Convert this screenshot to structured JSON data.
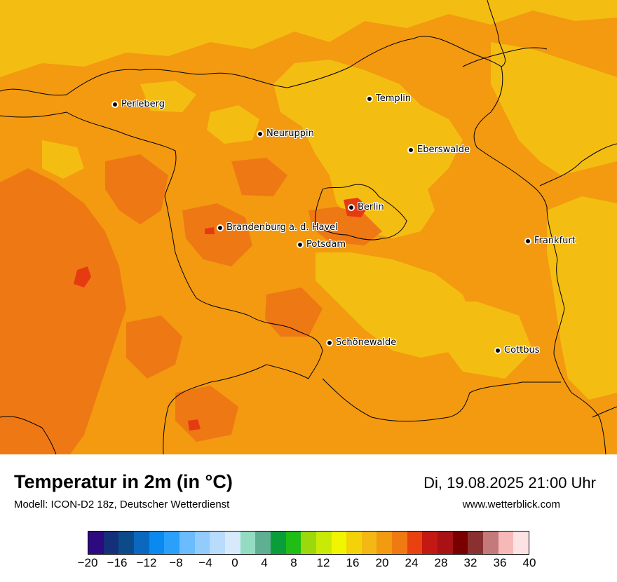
{
  "map": {
    "cities": [
      {
        "id": "perleberg",
        "name": "Perleberg"
      },
      {
        "id": "templin",
        "name": "Templin"
      },
      {
        "id": "neuruppin",
        "name": "Neuruppin"
      },
      {
        "id": "eberswalde",
        "name": "Eberswalde"
      },
      {
        "id": "berlin",
        "name": "Berlin"
      },
      {
        "id": "brandenburg",
        "name": "Brandenburg a. d. Havel"
      },
      {
        "id": "potsdam",
        "name": "Potsdam"
      },
      {
        "id": "frankfurt",
        "name": "Frankfurt"
      },
      {
        "id": "schoenewalde",
        "name": "Schönewalde"
      },
      {
        "id": "cottbus",
        "name": "Cottbus"
      }
    ],
    "colors": {
      "base": "#f39a10",
      "warmer": "#ee7814",
      "cooler": "#f4bd12",
      "hot": "#e63b12"
    }
  },
  "footer": {
    "title": "Temperatur in 2m (in °C)",
    "model": "Modell: ICON-D2 18z, Deutscher Wetterdienst",
    "datetime": "Di, 19.08.2025 21:00 Uhr",
    "website": "www.wetterblick.com"
  },
  "legend": {
    "colors": [
      "#2d0a7f",
      "#14307a",
      "#0c4b8a",
      "#0a68c0",
      "#0a8af0",
      "#2aa0fa",
      "#6bbcfc",
      "#92ccfc",
      "#b8dcfc",
      "#d6eafc",
      "#93dcc1",
      "#5fb092",
      "#0a9e3a",
      "#1fbd16",
      "#9bd80c",
      "#c9ea06",
      "#f2f500",
      "#f4d20a",
      "#f4b814",
      "#f29a10",
      "#ef7a12",
      "#e94210",
      "#c41812",
      "#a81214",
      "#7a0000",
      "#8a3030",
      "#c47a7a",
      "#f7b8b8",
      "#fce2e2"
    ],
    "ticks": [
      "−20",
      "−16",
      "−12",
      "−8",
      "−4",
      "0",
      "4",
      "8",
      "12",
      "16",
      "20",
      "24",
      "28",
      "32",
      "36",
      "40"
    ]
  }
}
